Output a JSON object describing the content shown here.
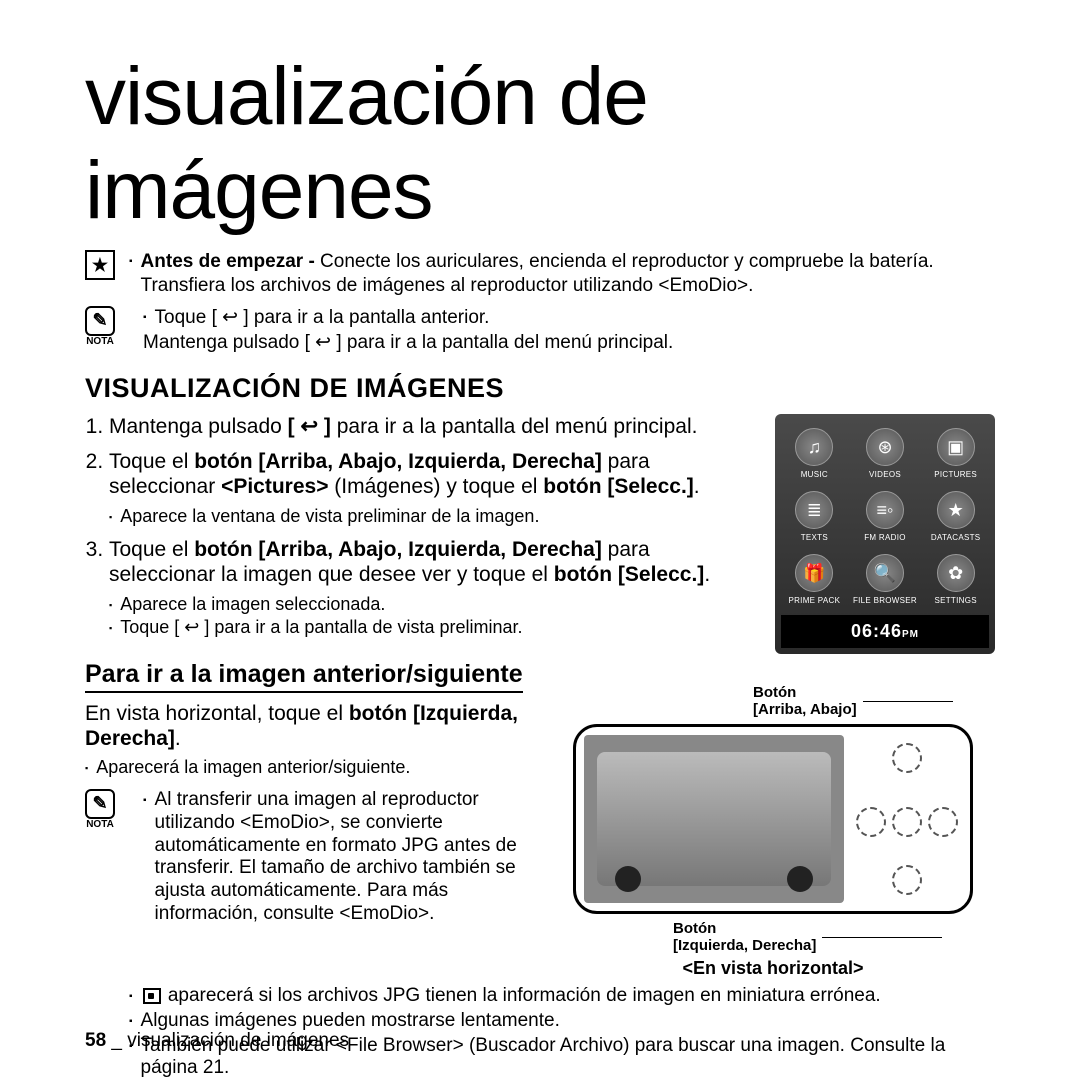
{
  "page_title": "visualización de imágenes",
  "intro": {
    "before_start_label": "Antes de empezar -",
    "before_start_text": " Conecte los auriculares, encienda el reproductor y compruebe la batería. Transfiera los archivos de imágenes al reproductor utilizando <EmoDio>.",
    "nota_label": "NOTA",
    "note_tap": "Toque [ ↩ ] para ir a la pantalla anterior.",
    "note_hold": "Mantenga pulsado [ ↩ ] para ir a la pantalla del menú principal."
  },
  "section_heading": "VISUALIZACIÓN DE IMÁGENES",
  "steps": {
    "s1a": "Mantenga pulsado ",
    "s1b": "[ ↩ ]",
    "s1c": " para ir a la pantalla del menú principal.",
    "s2a": "Toque el ",
    "s2b": "botón [Arriba, Abajo, Izquierda, Derecha]",
    "s2c": " para seleccionar ",
    "s2d": "<Pictures>",
    "s2e": " (Imágenes) y toque el ",
    "s2f": "botón [Selecc.]",
    "s2_sub1": "Aparece la ventana de vista preliminar de la imagen.",
    "s3a": "Toque el ",
    "s3b": "botón [Arriba, Abajo, Izquierda, Derecha]",
    "s3c": " para seleccionar la imagen que desee ver y toque el ",
    "s3d": "botón [Selecc.]",
    "s3_sub1": "Aparece la imagen seleccionada.",
    "s3_sub2": "Toque [ ↩ ] para ir a la pantalla de vista preliminar."
  },
  "subsection": {
    "heading": "Para ir a la imagen anterior/siguiente",
    "body_a": "En vista horizontal, toque el ",
    "body_b": "botón [Izquierda, Derecha]",
    "body_c": ".",
    "sub1": "Aparecerá la imagen anterior/siguiente."
  },
  "notes2": {
    "n1": "Al transferir una imagen al reproductor utilizando <EmoDio>, se convierte automáticamente en formato JPG antes de transferir. El tamaño de archivo también se ajusta automáticamente. Para más información, consulte <EmoDio>.",
    "n2_a": " aparecerá si los archivos JPG tienen la información de imagen en miniatura errónea.",
    "n3": "Algunas imágenes pueden mostrarse lentamente.",
    "n4": "También puede utilizar <File Browser> (Buscador Archivo) para buscar una imagen. Consulte la página 21."
  },
  "device_menu": {
    "items": [
      {
        "label": "MUSIC",
        "icon": "♫"
      },
      {
        "label": "VIDEOS",
        "icon": "⊛"
      },
      {
        "label": "PICTURES",
        "icon": "▣"
      },
      {
        "label": "TEXTS",
        "icon": "≣"
      },
      {
        "label": "FM RADIO",
        "icon": "≡◦"
      },
      {
        "label": "DATACASTS",
        "icon": "★"
      },
      {
        "label": "PRIME PACK",
        "icon": "🎁"
      },
      {
        "label": "FILE BROWSER",
        "icon": "🔍"
      },
      {
        "label": "SETTINGS",
        "icon": "✿"
      }
    ],
    "time": "06:46",
    "ampm": "PM"
  },
  "device_illust": {
    "label_top_a": "Botón",
    "label_top_b": "[Arriba, Abajo]",
    "label_bottom_a": "Botón",
    "label_bottom_b": "[Izquierda, Derecha]",
    "caption": "<En vista horizontal>"
  },
  "footer": {
    "page_num": "58",
    "sep": " _ ",
    "text": "visualización de imágenes"
  },
  "colors": {
    "text": "#000000",
    "bg": "#ffffff"
  }
}
